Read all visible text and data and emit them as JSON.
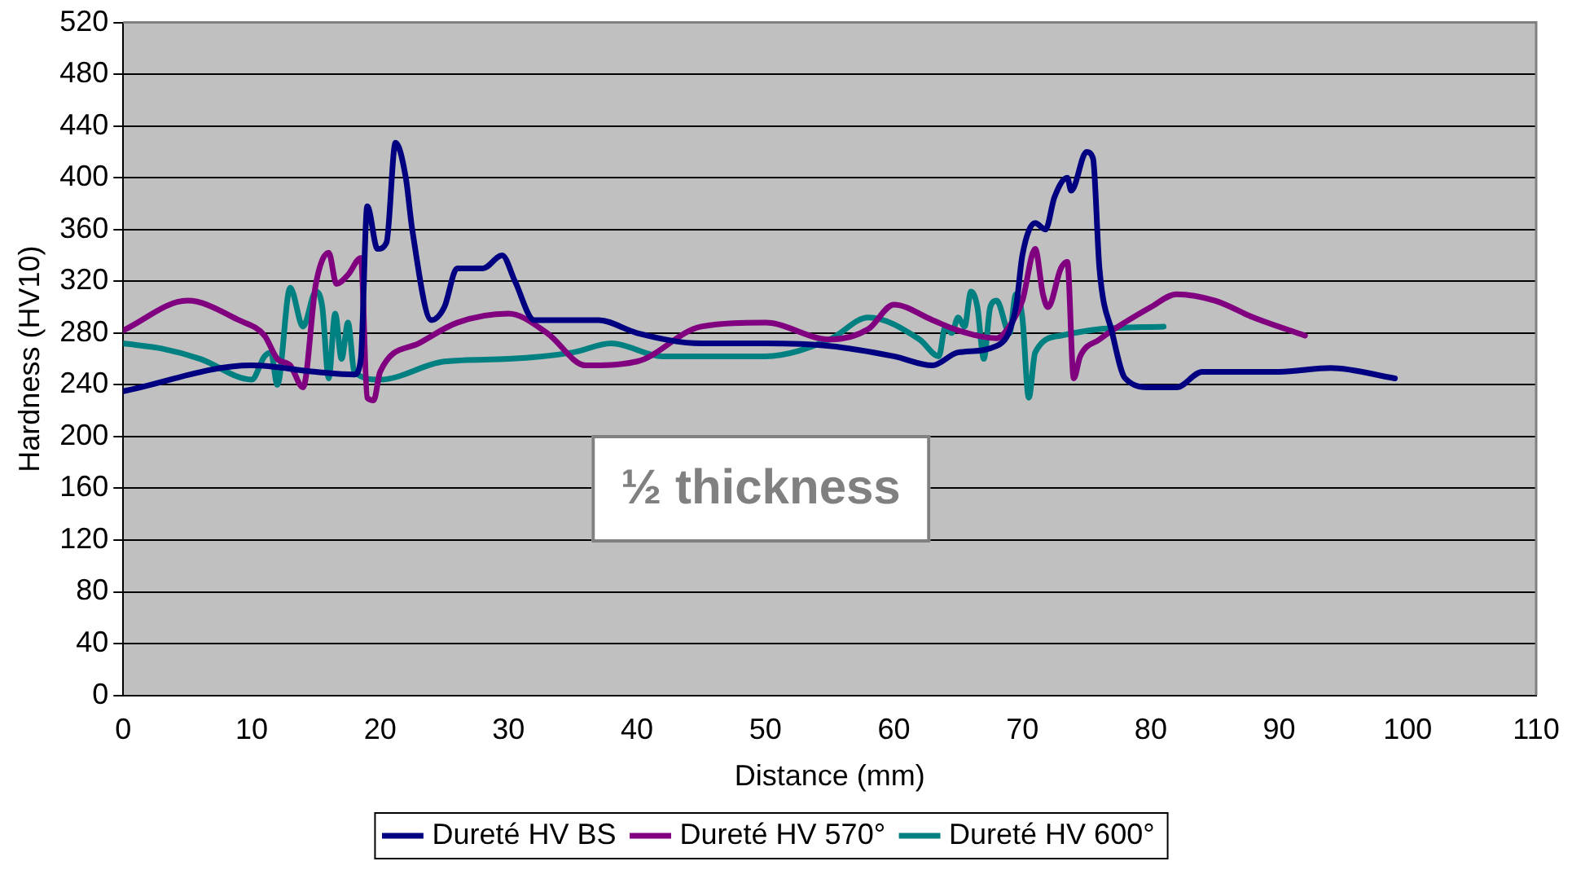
{
  "chart_data": {
    "type": "line",
    "xlabel": "Distance (mm)",
    "ylabel": "Hardness (HV10)",
    "xlim": [
      0,
      110
    ],
    "xticks": [
      0,
      10,
      20,
      30,
      40,
      50,
      60,
      70,
      80,
      90,
      100,
      110
    ],
    "ylim": [
      0,
      520
    ],
    "yticks": [
      0,
      40,
      80,
      120,
      160,
      200,
      240,
      280,
      320,
      360,
      400,
      440,
      480,
      520
    ],
    "grid": "y",
    "legend": "bottom",
    "marker": "none",
    "line_style": "solid",
    "annotations": [
      "½ thickness"
    ],
    "series": [
      {
        "name": "Dureté HV BS",
        "color": "#000080",
        "x": [
          0,
          10,
          15,
          18,
          18.5,
          19,
          19.8,
          20.5,
          21.2,
          22,
          22.5,
          24,
          25,
          26,
          28,
          29.5,
          30.5,
          32,
          35,
          37,
          40,
          45,
          50,
          55,
          60,
          63,
          65,
          68,
          69.5,
          70,
          71,
          71.8,
          72.5,
          73.5,
          73.8,
          75,
          75.5,
          76,
          77,
          78,
          80,
          82,
          84,
          90,
          94,
          99
        ],
        "values": [
          235,
          255,
          250,
          248,
          260,
          378,
          345,
          350,
          427,
          400,
          360,
          290,
          300,
          330,
          330,
          340,
          320,
          290,
          290,
          290,
          280,
          272,
          272,
          270,
          262,
          255,
          265,
          270,
          300,
          340,
          365,
          360,
          385,
          400,
          390,
          420,
          415,
          330,
          280,
          245,
          238,
          238,
          250,
          250,
          253,
          245
        ]
      },
      {
        "name": "Dureté HV 570°",
        "color": "#800080",
        "x": [
          0,
          5,
          9,
          11,
          12,
          13,
          14,
          15,
          16,
          16.6,
          17.5,
          18.5,
          19,
          19.5,
          20,
          23,
          26,
          30,
          33,
          36,
          40,
          45,
          50,
          55,
          58,
          60,
          63,
          65,
          68,
          69.3,
          70,
          71,
          71.6,
          72,
          73,
          73.5,
          74,
          74.5,
          76,
          80,
          82,
          85,
          88,
          92
        ],
        "values": [
          282,
          305,
          290,
          278,
          260,
          255,
          238,
          318,
          342,
          318,
          325,
          338,
          230,
          228,
          250,
          272,
          288,
          295,
          280,
          255,
          258,
          285,
          288,
          275,
          283,
          302,
          290,
          282,
          276,
          290,
          305,
          345,
          310,
          300,
          330,
          335,
          245,
          262,
          275,
          300,
          310,
          305,
          292,
          278
        ]
      },
      {
        "name": "Dureté HV 600°",
        "color": "#008080",
        "x": [
          0,
          3,
          6,
          10,
          11,
          11.5,
          12,
          13,
          14,
          15,
          15.5,
          16,
          16.5,
          17,
          17.5,
          18,
          20,
          25,
          30,
          35,
          38,
          42,
          50,
          55,
          58,
          62,
          63.5,
          64,
          64.5,
          65,
          65.5,
          66,
          66.5,
          67,
          67.5,
          68,
          69,
          69.5,
          70,
          70.5,
          71,
          73,
          76,
          81
        ],
        "values": [
          272,
          268,
          260,
          244,
          262,
          265,
          240,
          315,
          285,
          312,
          300,
          245,
          295,
          260,
          288,
          250,
          244,
          258,
          260,
          265,
          272,
          262,
          262,
          275,
          292,
          275,
          262,
          285,
          280,
          292,
          285,
          312,
          300,
          260,
          300,
          305,
          280,
          310,
          292,
          230,
          265,
          278,
          283,
          285
        ]
      }
    ]
  }
}
